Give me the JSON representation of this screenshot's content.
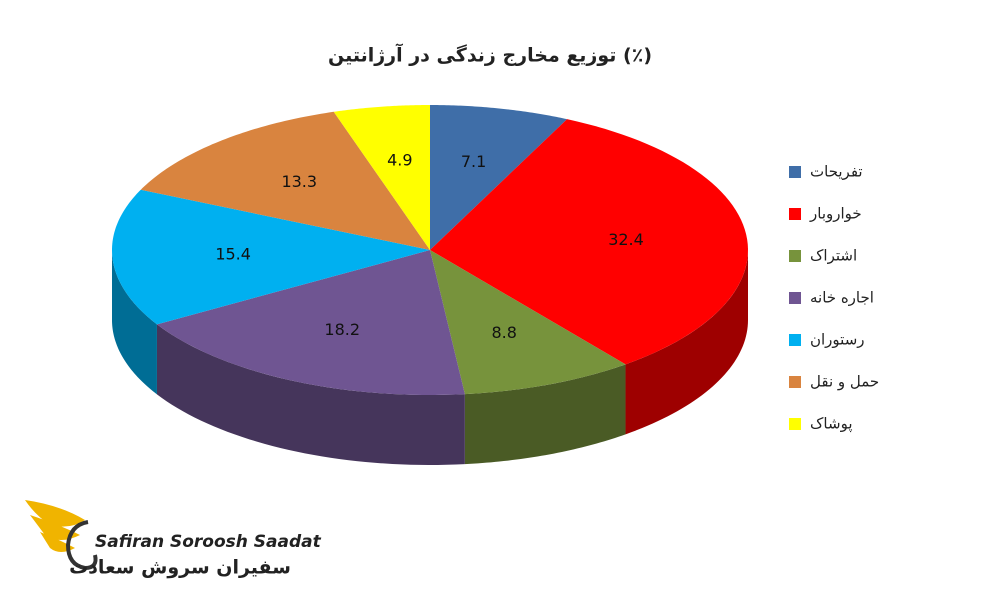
{
  "chart_data": {
    "type": "pie3d",
    "title": "توزیع مخارج زندگی در آرژانتین (٪)",
    "categories": [
      "تفریحات",
      "خواروبار",
      "اشتراک",
      "اجاره خانه",
      "رستوران",
      "حمل و نقل",
      "پوشاک"
    ],
    "values": [
      7.1,
      32.4,
      8.8,
      18.2,
      15.4,
      13.3,
      4.9
    ],
    "colors": [
      "#3f6ea8",
      "#ff0000",
      "#77933c",
      "#6f5592",
      "#00b0f0",
      "#d9843f",
      "#ffff00"
    ],
    "legend": "right"
  },
  "logo": {
    "name": "Safiran Soroosh Saadat",
    "name_fa": "سفیران سروش سعادت"
  }
}
